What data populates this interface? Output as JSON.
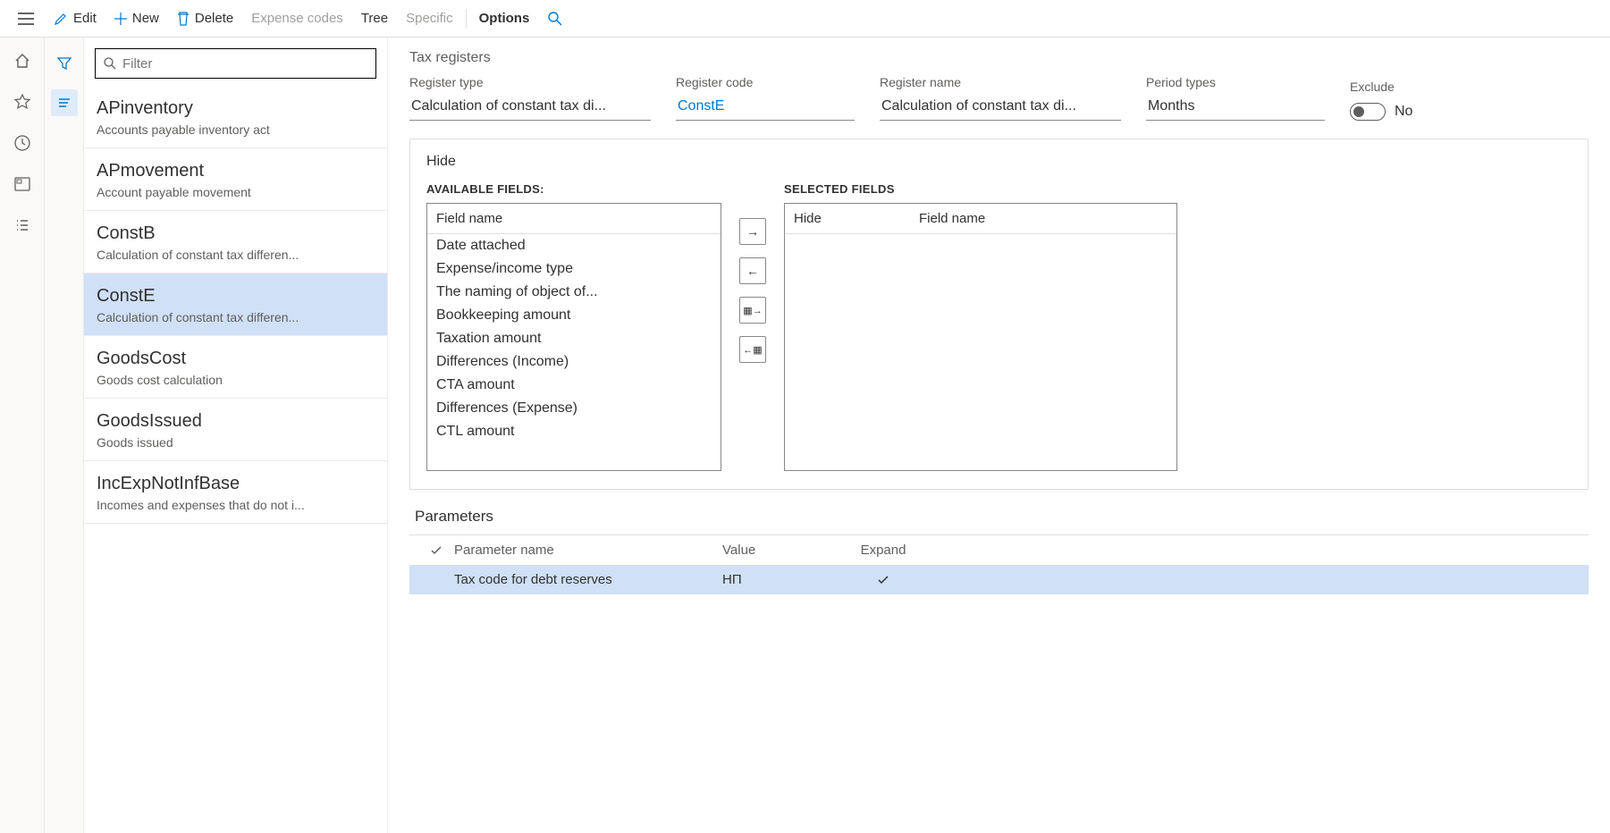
{
  "toolbar": {
    "edit": "Edit",
    "new": "New",
    "delete": "Delete",
    "expense_codes": "Expense codes",
    "tree": "Tree",
    "specific": "Specific",
    "options": "Options"
  },
  "filter": {
    "placeholder": "Filter"
  },
  "registers": [
    {
      "code": "APinventory",
      "name": "Accounts payable inventory act",
      "selected": false
    },
    {
      "code": "APmovement",
      "name": "Account payable movement",
      "selected": false
    },
    {
      "code": "ConstB",
      "name": "Calculation of constant tax differen...",
      "selected": false
    },
    {
      "code": "ConstE",
      "name": "Calculation of constant tax differen...",
      "selected": true
    },
    {
      "code": "GoodsCost",
      "name": "Goods cost calculation",
      "selected": false
    },
    {
      "code": "GoodsIssued",
      "name": "Goods issued",
      "selected": false
    },
    {
      "code": "IncExpNotInfBase",
      "name": "Incomes and expenses that do not i...",
      "selected": false
    }
  ],
  "header": {
    "section": "Tax registers",
    "register_type_label": "Register type",
    "register_type": "Calculation of constant tax di...",
    "register_code_label": "Register code",
    "register_code": "ConstE",
    "register_name_label": "Register name",
    "register_name": "Calculation of constant tax di...",
    "period_types_label": "Period types",
    "period_types": "Months",
    "exclude_label": "Exclude",
    "exclude_value": "No"
  },
  "hide_card": {
    "title": "Hide",
    "available_label": "AVAILABLE FIELDS:",
    "selected_label": "SELECTED FIELDS",
    "field_name_col": "Field name",
    "hide_col": "Hide",
    "available": [
      "Date attached",
      "Expense/income type",
      "The naming of object of...",
      "Bookkeeping amount",
      "Taxation amount",
      "Differences (Income)",
      "CTA amount",
      "Differences (Expense)",
      "CTL amount"
    ]
  },
  "parameters": {
    "title": "Parameters",
    "cols": {
      "name": "Parameter name",
      "value": "Value",
      "expand": "Expand"
    },
    "rows": [
      {
        "name": "Tax code for debt reserves",
        "value": "НП",
        "expand": true,
        "selected": true
      }
    ]
  },
  "colors": {
    "selection": "#cfe0f7",
    "link": "#0078d4"
  }
}
